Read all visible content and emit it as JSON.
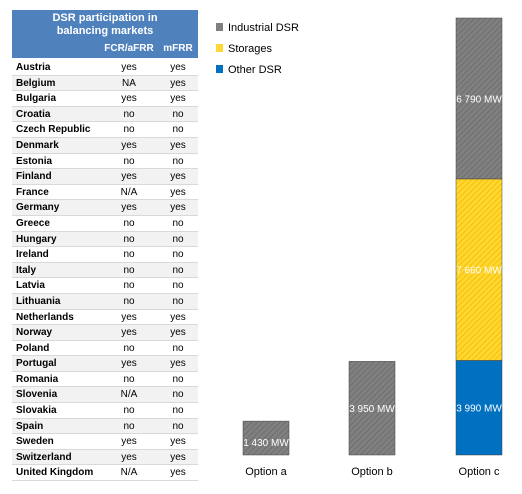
{
  "table": {
    "title_line1": "DSR participation in",
    "title_line2": "balancing markets",
    "col_fcr": "FCR/aFRR",
    "col_mfrr": "mFRR",
    "rows": [
      {
        "country": "Austria",
        "fcr": "yes",
        "mfrr": "yes"
      },
      {
        "country": "Belgium",
        "fcr": "NA",
        "mfrr": "yes"
      },
      {
        "country": "Bulgaria",
        "fcr": "yes",
        "mfrr": "yes"
      },
      {
        "country": "Croatia",
        "fcr": "no",
        "mfrr": "no"
      },
      {
        "country": "Czech Republic",
        "fcr": "no",
        "mfrr": "no"
      },
      {
        "country": "Denmark",
        "fcr": "yes",
        "mfrr": "yes"
      },
      {
        "country": "Estonia",
        "fcr": "no",
        "mfrr": "no"
      },
      {
        "country": "Finland",
        "fcr": "yes",
        "mfrr": "yes"
      },
      {
        "country": "France",
        "fcr": "N/A",
        "mfrr": "yes"
      },
      {
        "country": "Germany",
        "fcr": "yes",
        "mfrr": "yes"
      },
      {
        "country": "Greece",
        "fcr": "no",
        "mfrr": "no"
      },
      {
        "country": "Hungary",
        "fcr": "no",
        "mfrr": "no"
      },
      {
        "country": "Ireland",
        "fcr": "no",
        "mfrr": "no"
      },
      {
        "country": "Italy",
        "fcr": "no",
        "mfrr": "no"
      },
      {
        "country": "Latvia",
        "fcr": "no",
        "mfrr": "no"
      },
      {
        "country": "Lithuania",
        "fcr": "no",
        "mfrr": "no"
      },
      {
        "country": "Netherlands",
        "fcr": "yes",
        "mfrr": "yes"
      },
      {
        "country": "Norway",
        "fcr": "yes",
        "mfrr": "yes"
      },
      {
        "country": "Poland",
        "fcr": "no",
        "mfrr": "no"
      },
      {
        "country": "Portugal",
        "fcr": "yes",
        "mfrr": "yes"
      },
      {
        "country": "Romania",
        "fcr": "no",
        "mfrr": "no"
      },
      {
        "country": "Slovenia",
        "fcr": "N/A",
        "mfrr": "no"
      },
      {
        "country": "Slovakia",
        "fcr": "no",
        "mfrr": "no"
      },
      {
        "country": "Spain",
        "fcr": "no",
        "mfrr": "no"
      },
      {
        "country": "Sweden",
        "fcr": "yes",
        "mfrr": "yes"
      },
      {
        "country": "Switzerland",
        "fcr": "yes",
        "mfrr": "yes"
      },
      {
        "country": "United Kingdom",
        "fcr": "N/A",
        "mfrr": "yes"
      }
    ]
  },
  "chart_data": {
    "type": "bar",
    "stacked": true,
    "categories": [
      "Option a",
      "Option b",
      "Option c"
    ],
    "series": [
      {
        "name": "Other DSR",
        "color": "#0070c0",
        "values": [
          0,
          0,
          3990
        ],
        "labels": [
          "0 MW",
          "0 MW",
          "3 990 MW"
        ]
      },
      {
        "name": "Storages",
        "color": "#ffd633",
        "values": [
          0,
          0,
          7660
        ],
        "labels": [
          "",
          "",
          "7 660 MW"
        ]
      },
      {
        "name": "Industrial DSR",
        "color": "#808080",
        "values": [
          1430,
          3950,
          6790
        ],
        "labels": [
          "1 430 MW",
          "3 950 MW",
          "6 790 MW"
        ]
      }
    ],
    "legend": [
      "Industrial DSR",
      "Storages",
      "Other DSR"
    ],
    "legend_position": "top-left",
    "ylim": [
      0,
      18440
    ],
    "grid": false
  }
}
